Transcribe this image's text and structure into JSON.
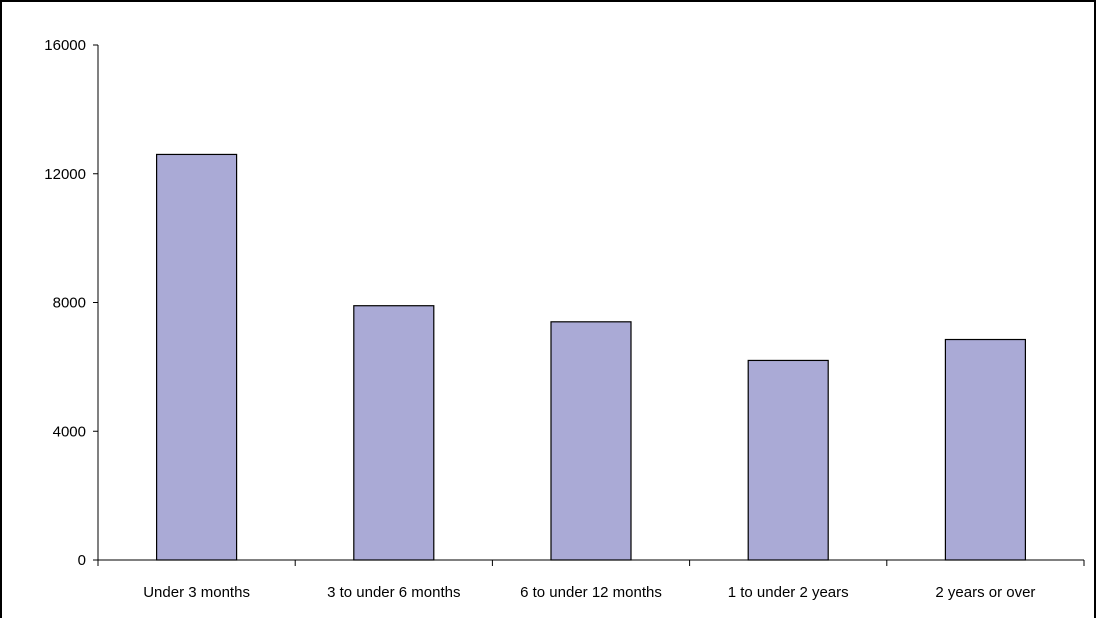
{
  "chart_data": {
    "type": "bar",
    "title": "",
    "xlabel": "",
    "ylabel": "",
    "categories": [
      "Under 3 months",
      "3 to under 6 months",
      "6 to under 12 months",
      "1 to under 2 years",
      "2 years or over"
    ],
    "values": [
      12600,
      7900,
      7400,
      6200,
      6850
    ],
    "ylim": [
      0,
      16000
    ],
    "yticks": [
      "0",
      "4000",
      "8000",
      "12000",
      "16000"
    ],
    "grid": false,
    "legend": "none",
    "colors": {
      "bar_fill": "#aaaad6",
      "bar_stroke": "#000000",
      "axis": "#000000"
    }
  }
}
